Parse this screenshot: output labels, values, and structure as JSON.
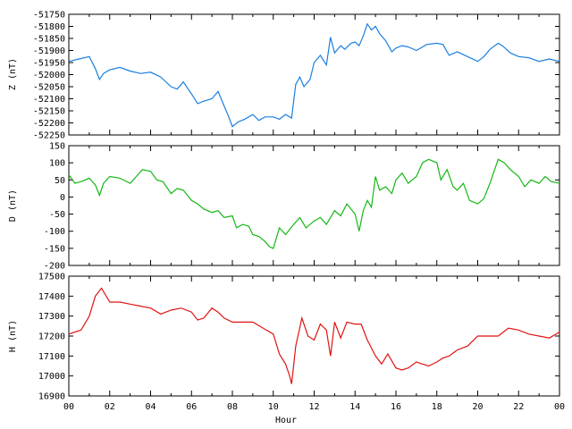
{
  "chart_data": [
    {
      "type": "line",
      "ylabel": "Z (nT)",
      "ylim": [
        -52250,
        -51750
      ],
      "yticks": [
        -51750,
        -51800,
        -51850,
        -51900,
        -51950,
        -52000,
        -52050,
        -52100,
        -52150,
        -52200,
        -52250
      ],
      "xlim": [
        0,
        24
      ],
      "grid": false,
      "series": [
        {
          "color": "#1a7fe0",
          "x": [
            0,
            0.5,
            1,
            1.3,
            1.5,
            1.7,
            2,
            2.5,
            3,
            3.5,
            4,
            4.5,
            5,
            5.3,
            5.6,
            6,
            6.3,
            6.6,
            7,
            7.3,
            7.6,
            7.8,
            8,
            8.3,
            8.6,
            9,
            9.3,
            9.6,
            10,
            10.3,
            10.6,
            10.9,
            11.1,
            11.3,
            11.5,
            11.8,
            12,
            12.3,
            12.6,
            12.8,
            13,
            13.3,
            13.5,
            13.8,
            14,
            14.2,
            14.4,
            14.6,
            14.8,
            15,
            15.2,
            15.5,
            15.8,
            16,
            16.3,
            16.6,
            17,
            17.5,
            18,
            18.3,
            18.6,
            19,
            19.5,
            20,
            20.3,
            20.6,
            21,
            21.2,
            21.6,
            22,
            22.5,
            23,
            23.5,
            24
          ],
          "y": [
            -51945,
            -51935,
            -51925,
            -51975,
            -52020,
            -51995,
            -51980,
            -51970,
            -51985,
            -51995,
            -51990,
            -52010,
            -52050,
            -52060,
            -52030,
            -52080,
            -52120,
            -52110,
            -52100,
            -52070,
            -52130,
            -52170,
            -52215,
            -52195,
            -52185,
            -52165,
            -52190,
            -52175,
            -52175,
            -52185,
            -52165,
            -52180,
            -52040,
            -52010,
            -52050,
            -52020,
            -51950,
            -51920,
            -51960,
            -51845,
            -51910,
            -51880,
            -51895,
            -51870,
            -51865,
            -51880,
            -51840,
            -51790,
            -51815,
            -51800,
            -51830,
            -51860,
            -51905,
            -51890,
            -51880,
            -51885,
            -51900,
            -51875,
            -51870,
            -51875,
            -51920,
            -51905,
            -51925,
            -51945,
            -51925,
            -51895,
            -51870,
            -51880,
            -51910,
            -51925,
            -51930,
            -51945,
            -51935,
            -51945
          ]
        }
      ]
    },
    {
      "type": "line",
      "ylabel": "D (nT)",
      "ylim": [
        -200,
        150
      ],
      "yticks": [
        150,
        100,
        50,
        0,
        -50,
        -100,
        -150,
        -200
      ],
      "xlim": [
        0,
        24
      ],
      "grid": false,
      "series": [
        {
          "color": "#14b814",
          "x": [
            0,
            0.3,
            0.6,
            1,
            1.3,
            1.5,
            1.7,
            2,
            2.5,
            3,
            3.3,
            3.6,
            4,
            4.3,
            4.6,
            5,
            5.3,
            5.6,
            6,
            6.3,
            6.6,
            7,
            7.3,
            7.6,
            8,
            8.2,
            8.5,
            8.8,
            9,
            9.3,
            9.6,
            9.8,
            10,
            10.3,
            10.6,
            11,
            11.3,
            11.6,
            12,
            12.3,
            12.6,
            13,
            13.3,
            13.6,
            14,
            14.2,
            14.4,
            14.6,
            14.8,
            15,
            15.2,
            15.5,
            15.8,
            16,
            16.3,
            16.6,
            17,
            17.3,
            17.6,
            18,
            18.2,
            18.5,
            18.8,
            19,
            19.3,
            19.6,
            20,
            20.3,
            20.6,
            21,
            21.3,
            21.6,
            22,
            22.3,
            22.6,
            23,
            23.3,
            23.6,
            24
          ],
          "y": [
            65,
            40,
            45,
            55,
            35,
            5,
            40,
            60,
            55,
            40,
            60,
            80,
            75,
            50,
            45,
            10,
            25,
            20,
            -10,
            -20,
            -35,
            -45,
            -40,
            -60,
            -55,
            -90,
            -80,
            -85,
            -110,
            -115,
            -130,
            -145,
            -150,
            -90,
            -110,
            -80,
            -60,
            -90,
            -70,
            -60,
            -80,
            -40,
            -55,
            -20,
            -50,
            -100,
            -40,
            -10,
            -30,
            60,
            20,
            30,
            10,
            50,
            70,
            40,
            60,
            100,
            110,
            100,
            50,
            80,
            30,
            20,
            40,
            -10,
            -20,
            -5,
            40,
            110,
            100,
            80,
            60,
            30,
            50,
            40,
            60,
            45,
            40
          ]
        }
      ]
    },
    {
      "type": "line",
      "xlabel": "Hour",
      "ylabel": "H (nT)",
      "ylim": [
        16900,
        17500
      ],
      "yticks": [
        17500,
        17400,
        17300,
        17200,
        17100,
        17000,
        16900
      ],
      "xlim": [
        0,
        24
      ],
      "xticks": [
        "00",
        "02",
        "04",
        "06",
        "08",
        "10",
        "12",
        "14",
        "16",
        "18",
        "20",
        "22",
        "00"
      ],
      "grid": false,
      "series": [
        {
          "color": "#e01414",
          "x": [
            0,
            0.3,
            0.6,
            1,
            1.3,
            1.6,
            2,
            2.5,
            3,
            3.5,
            4,
            4.5,
            5,
            5.5,
            6,
            6.3,
            6.6,
            7,
            7.3,
            7.6,
            8,
            8.5,
            9,
            9.5,
            10,
            10.3,
            10.6,
            10.8,
            10.9,
            11.1,
            11.4,
            11.7,
            12,
            12.3,
            12.6,
            12.8,
            13,
            13.3,
            13.6,
            14,
            14.3,
            14.6,
            14.8,
            15,
            15.3,
            15.6,
            16,
            16.3,
            16.6,
            17,
            17.3,
            17.6,
            18,
            18.3,
            18.6,
            19,
            19.5,
            20,
            20.5,
            21,
            21.5,
            22,
            22.5,
            23,
            23.5,
            24
          ],
          "y": [
            17210,
            17220,
            17230,
            17300,
            17400,
            17440,
            17370,
            17370,
            17360,
            17350,
            17340,
            17310,
            17330,
            17340,
            17320,
            17280,
            17290,
            17340,
            17320,
            17290,
            17270,
            17270,
            17270,
            17240,
            17210,
            17110,
            17060,
            17000,
            16960,
            17150,
            17290,
            17200,
            17180,
            17260,
            17230,
            17100,
            17270,
            17190,
            17270,
            17260,
            17260,
            17180,
            17140,
            17100,
            17060,
            17110,
            17040,
            17030,
            17040,
            17070,
            17060,
            17050,
            17070,
            17090,
            17100,
            17130,
            17150,
            17200,
            17200,
            17200,
            17240,
            17230,
            17210,
            17200,
            17190,
            17220
          ]
        }
      ]
    }
  ]
}
